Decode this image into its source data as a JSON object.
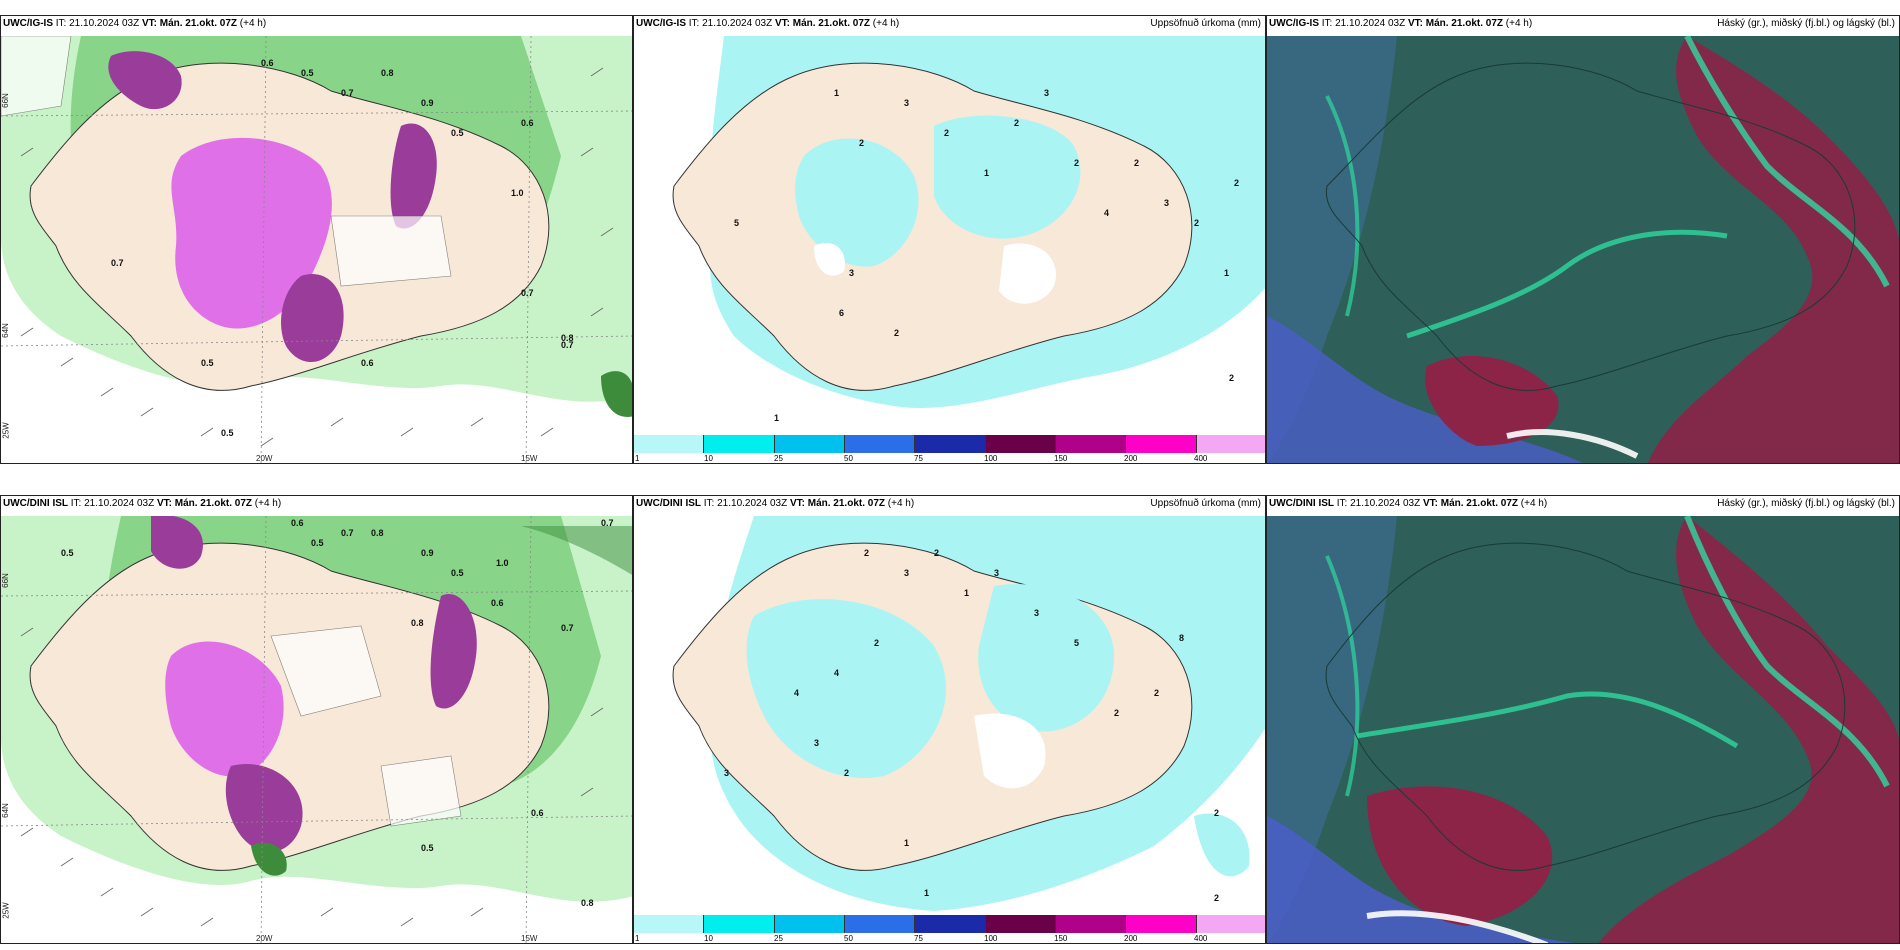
{
  "rows": [
    {
      "model": "UWC/IG-IS",
      "panels": [
        {
          "init_label": "IT:",
          "init": "21.10.2024 03Z",
          "valid_label": "VT:",
          "valid": "Mán. 21.okt. 07Z",
          "lead": "(+4 h)",
          "right": ""
        },
        {
          "init_label": "IT:",
          "init": "21.10.2024 03Z",
          "valid_label": "VT:",
          "valid": "Mán. 21.okt. 07Z",
          "lead": "(+4 h)",
          "right": "Uppsöfnuð úrkoma (mm)"
        },
        {
          "init_label": "IT:",
          "init": "21.10.2024 03Z",
          "valid_label": "VT:",
          "valid": "Mán. 21.okt. 07Z",
          "lead": "(+4 h)",
          "right": "Háský (gr.), miðský (fj.bl.) og lágský (bl.)"
        }
      ]
    },
    {
      "model": "UWC/DINI ISL",
      "panels": [
        {
          "init_label": "IT:",
          "init": "21.10.2024 03Z",
          "valid_label": "VT:",
          "valid": "Mán. 21.okt. 07Z",
          "lead": "(+4 h)",
          "right": ""
        },
        {
          "init_label": "IT:",
          "init": "21.10.2024 03Z",
          "valid_label": "VT:",
          "valid": "Mán. 21.okt. 07Z",
          "lead": "(+4 h)",
          "right": "Uppsöfnuð úrkoma (mm)"
        },
        {
          "init_label": "IT:",
          "init": "21.10.2024 03Z",
          "valid_label": "VT:",
          "valid": "Mán. 21.okt. 07Z",
          "lead": "(+4 h)",
          "right": "Háský (gr.), miðský (fj.bl.) og lágský (bl.)"
        }
      ]
    }
  ],
  "axis_labels": {
    "lon_20": "20W",
    "lon_15": "15W",
    "lat_66": "66N",
    "lat_64": "64N",
    "lon_25": "25W"
  },
  "colorbar": {
    "ticks": [
      "1",
      "10",
      "25",
      "50",
      "75",
      "100",
      "150",
      "200",
      "400"
    ],
    "colors": [
      "#b8f7f7",
      "#00eeee",
      "#00c0ee",
      "#2a6ee8",
      "#1a2aa8",
      "#6a0048",
      "#b0008a",
      "#ff00c8",
      "#f4a8f4"
    ]
  },
  "colors": {
    "land": "#f7e8d8",
    "light_green": "#c8f2c8",
    "mid_green": "#88d488",
    "dark_green": "#3c8c3c",
    "magenta": "#e070e8",
    "purple": "#9a3c9a",
    "precip": "#aaf4f4",
    "cloud_base": "#2e5f58",
    "cloud_red": "#8c2448",
    "cloud_teal": "#2fd8a0"
  },
  "map_numbers": {
    "row1_wind": [
      "0.6",
      "0.5",
      "0.7",
      "0.8",
      "0.9",
      "0.5",
      "0.6",
      "1.0",
      "0.7",
      "0.8",
      "0.5",
      "0.6",
      "0.7",
      "0.5",
      "0.7"
    ],
    "row2_wind": [
      "0.6",
      "0.5",
      "0.7",
      "0.8",
      "0.9",
      "0.5",
      "0.6",
      "1.0",
      "0.7",
      "0.8",
      "0.5",
      "0.6",
      "0.7",
      "0.5",
      "0.8"
    ],
    "row1_precip": [
      "1",
      "2",
      "3",
      "2",
      "1",
      "2",
      "3",
      "2",
      "4",
      "2",
      "3",
      "2",
      "1",
      "2",
      "1",
      "3",
      "2",
      "6",
      "5",
      "2"
    ],
    "row2_precip": [
      "2",
      "3",
      "2",
      "1",
      "3",
      "4",
      "2",
      "3",
      "5",
      "8",
      "2",
      "4",
      "3",
      "2",
      "1",
      "2",
      "3",
      "2",
      "1",
      "2"
    ]
  }
}
